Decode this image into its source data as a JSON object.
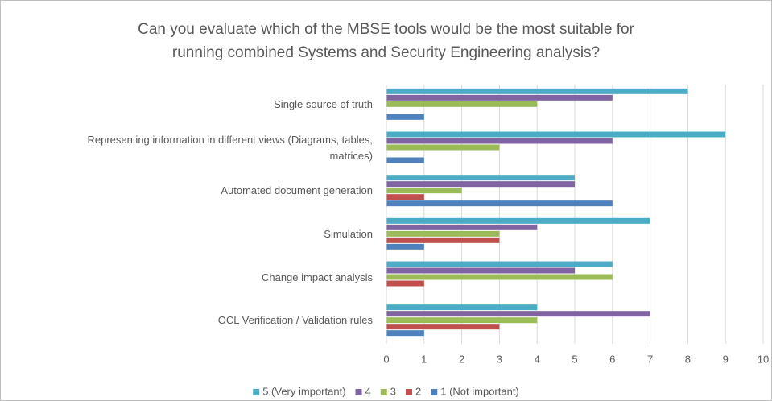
{
  "chart_data": {
    "type": "barh",
    "title": "Can you evaluate which of the MBSE tools would be the most suitable for\nrunning combined Systems and Security Engineering analysis?",
    "categories": [
      "Single source of truth",
      "Representing information in different views (Diagrams, tables,\nmatrices)",
      "Automated document generation",
      "Simulation",
      "Change impact analysis",
      "OCL Verification / Validation rules"
    ],
    "series": [
      {
        "name": "5 (Very important)",
        "color": "#4bacc6",
        "values": [
          8,
          9,
          5,
          7,
          6,
          4
        ]
      },
      {
        "name": "4",
        "color": "#8064a2",
        "values": [
          6,
          6,
          5,
          4,
          5,
          7
        ]
      },
      {
        "name": "3",
        "color": "#9bbb59",
        "values": [
          4,
          3,
          2,
          3,
          6,
          4
        ]
      },
      {
        "name": "2",
        "color": "#c0504d",
        "values": [
          0,
          0,
          1,
          3,
          1,
          3
        ]
      },
      {
        "name": "1 (Not important)",
        "color": "#4f81bd",
        "values": [
          1,
          1,
          6,
          1,
          0,
          1
        ]
      }
    ],
    "xlim": [
      0,
      10
    ],
    "xticks": [
      0,
      1,
      2,
      3,
      4,
      5,
      6,
      7,
      8,
      9,
      10
    ],
    "grid": true,
    "legend": "bottom"
  }
}
